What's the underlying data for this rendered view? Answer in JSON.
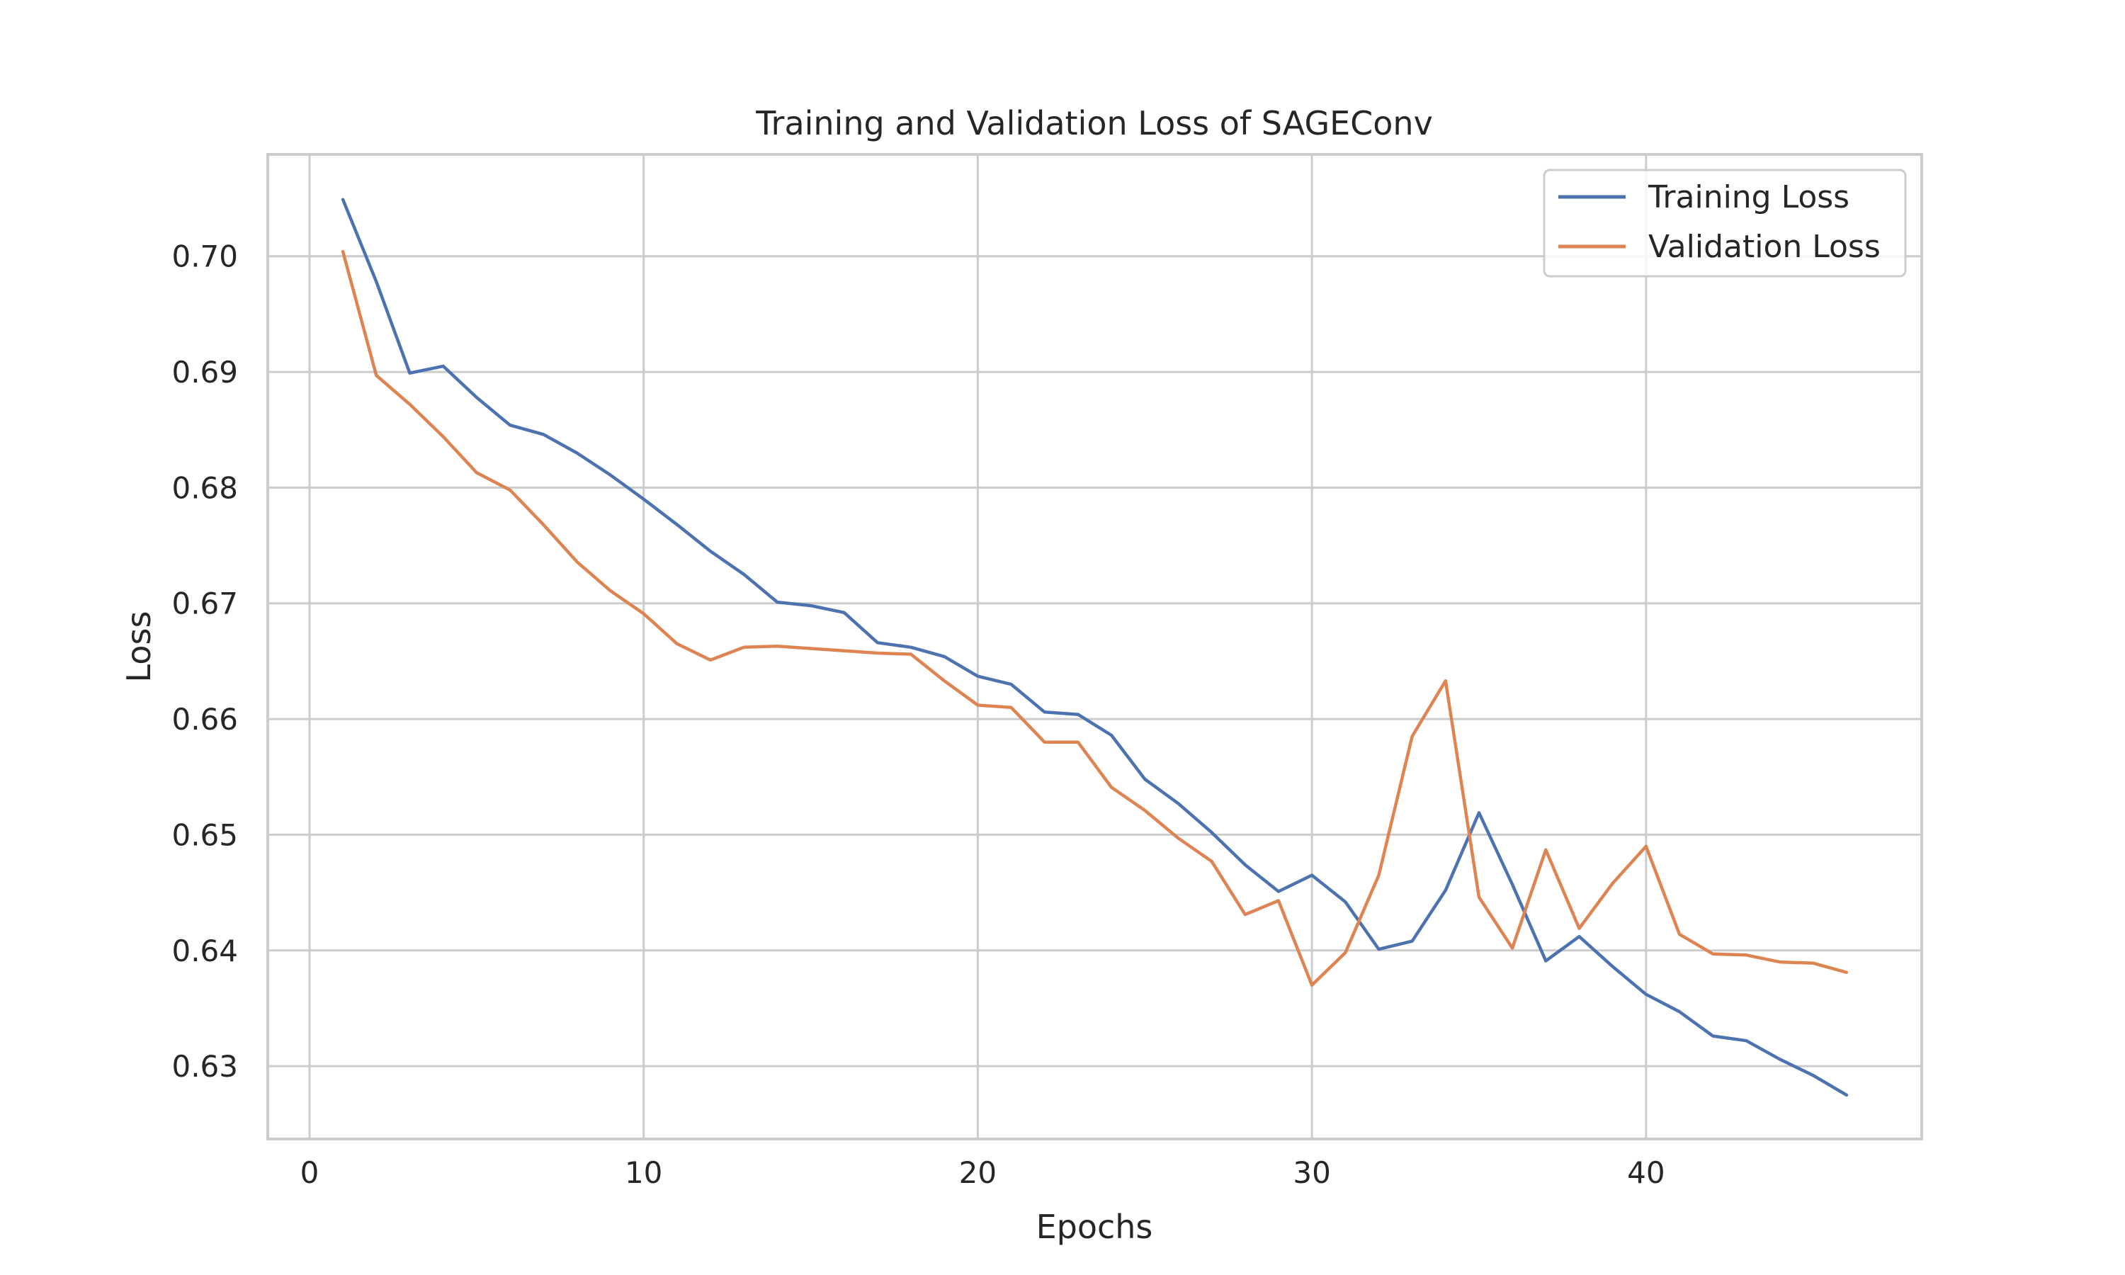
{
  "chart_data": {
    "type": "line",
    "title": "Training and Validation Loss of SAGEConv",
    "xlabel": "Epochs",
    "ylabel": "Loss",
    "xlim": [
      -1.25,
      48.25
    ],
    "ylim": [
      0.6237,
      0.7088
    ],
    "xticks": [
      0,
      10,
      20,
      30,
      40
    ],
    "xtick_labels": [
      "0",
      "10",
      "20",
      "30",
      "40"
    ],
    "yticks": [
      0.63,
      0.64,
      0.65,
      0.66,
      0.67,
      0.68,
      0.69,
      0.7
    ],
    "ytick_labels": [
      "0.63",
      "0.64",
      "0.65",
      "0.66",
      "0.67",
      "0.68",
      "0.69",
      "0.70"
    ],
    "grid": true,
    "legend_position": "top-right",
    "x": [
      1,
      2,
      3,
      4,
      5,
      6,
      7,
      8,
      9,
      10,
      11,
      12,
      13,
      14,
      15,
      16,
      17,
      18,
      19,
      20,
      21,
      22,
      23,
      24,
      25,
      26,
      27,
      28,
      29,
      30,
      31,
      32,
      33,
      34,
      35,
      36,
      37,
      38,
      39,
      40,
      41,
      42,
      43,
      44,
      45,
      46
    ],
    "series": [
      {
        "name": "Training Loss",
        "color": "#4c72b0",
        "values": [
          0.7049,
          0.6978,
          0.6899,
          0.6905,
          0.6878,
          0.6854,
          0.6846,
          0.683,
          0.6811,
          0.679,
          0.6768,
          0.6745,
          0.6725,
          0.6701,
          0.6698,
          0.6692,
          0.6666,
          0.6662,
          0.6654,
          0.6637,
          0.663,
          0.6606,
          0.6604,
          0.6586,
          0.6548,
          0.6527,
          0.6502,
          0.6474,
          0.6451,
          0.6465,
          0.6442,
          0.6401,
          0.6408,
          0.6452,
          0.6519,
          0.6457,
          0.6391,
          0.6412,
          0.6386,
          0.6362,
          0.6347,
          0.6326,
          0.6322,
          0.6306,
          0.6292,
          0.6275
        ]
      },
      {
        "name": "Validation Loss",
        "color": "#dd8452",
        "values": [
          0.7004,
          0.6897,
          0.6872,
          0.6844,
          0.6813,
          0.6798,
          0.6768,
          0.6736,
          0.6711,
          0.6691,
          0.6665,
          0.6651,
          0.6662,
          0.6663,
          0.6661,
          0.6659,
          0.6657,
          0.6656,
          0.6633,
          0.6612,
          0.661,
          0.658,
          0.658,
          0.6541,
          0.6521,
          0.6497,
          0.6477,
          0.6431,
          0.6443,
          0.637,
          0.6398,
          0.6465,
          0.6585,
          0.6633,
          0.6446,
          0.6402,
          0.6487,
          0.6419,
          0.6458,
          0.649,
          0.6414,
          0.6397,
          0.6396,
          0.639,
          0.6389,
          0.6381
        ]
      }
    ]
  }
}
